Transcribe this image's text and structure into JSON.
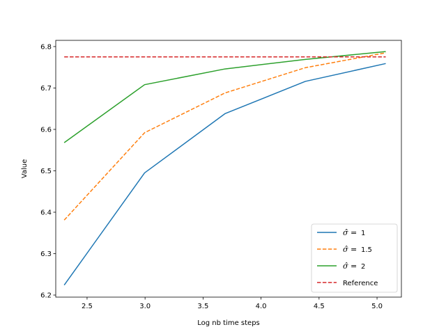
{
  "chart_data": {
    "type": "line",
    "xlabel": "Log nb time  steps",
    "ylabel": "Value",
    "xlim": [
      2.23,
      5.21
    ],
    "ylim": [
      6.195,
      6.815
    ],
    "xticks": [
      2.5,
      3.0,
      3.5,
      4.0,
      4.5,
      5.0
    ],
    "xtick_labels": [
      "2.5",
      "3.0",
      "3.5",
      "4.0",
      "4.5",
      "5.0"
    ],
    "yticks": [
      6.2,
      6.3,
      6.4,
      6.5,
      6.6,
      6.7,
      6.8
    ],
    "ytick_labels": [
      "6.2",
      "6.3",
      "6.4",
      "6.5",
      "6.6",
      "6.7",
      "6.8"
    ],
    "grid": false,
    "legend_position": "lower-right",
    "series": [
      {
        "name": "1",
        "legend_prefix": "σ̂ =",
        "color": "#1f77b4",
        "dash": "solid",
        "x": [
          2.303,
          2.996,
          3.689,
          4.382,
          5.075
        ],
        "y": [
          6.224,
          6.495,
          6.638,
          6.716,
          6.759
        ]
      },
      {
        "name": "1.5",
        "legend_prefix": "σ̂ =",
        "color": "#ff7f0e",
        "dash": "dashed",
        "x": [
          2.303,
          2.996,
          3.689,
          4.382,
          5.075
        ],
        "y": [
          6.381,
          6.592,
          6.688,
          6.749,
          6.785
        ]
      },
      {
        "name": "2",
        "legend_prefix": "σ̂ =",
        "color": "#2ca02c",
        "dash": "solid",
        "x": [
          2.303,
          2.996,
          3.689,
          4.382,
          5.075
        ],
        "y": [
          6.568,
          6.708,
          6.746,
          6.769,
          6.788
        ]
      },
      {
        "name": "Reference",
        "legend_prefix": "",
        "color": "#d62728",
        "dash": "dashed",
        "x": [
          2.303,
          5.075
        ],
        "y": [
          6.775,
          6.775
        ]
      }
    ]
  }
}
